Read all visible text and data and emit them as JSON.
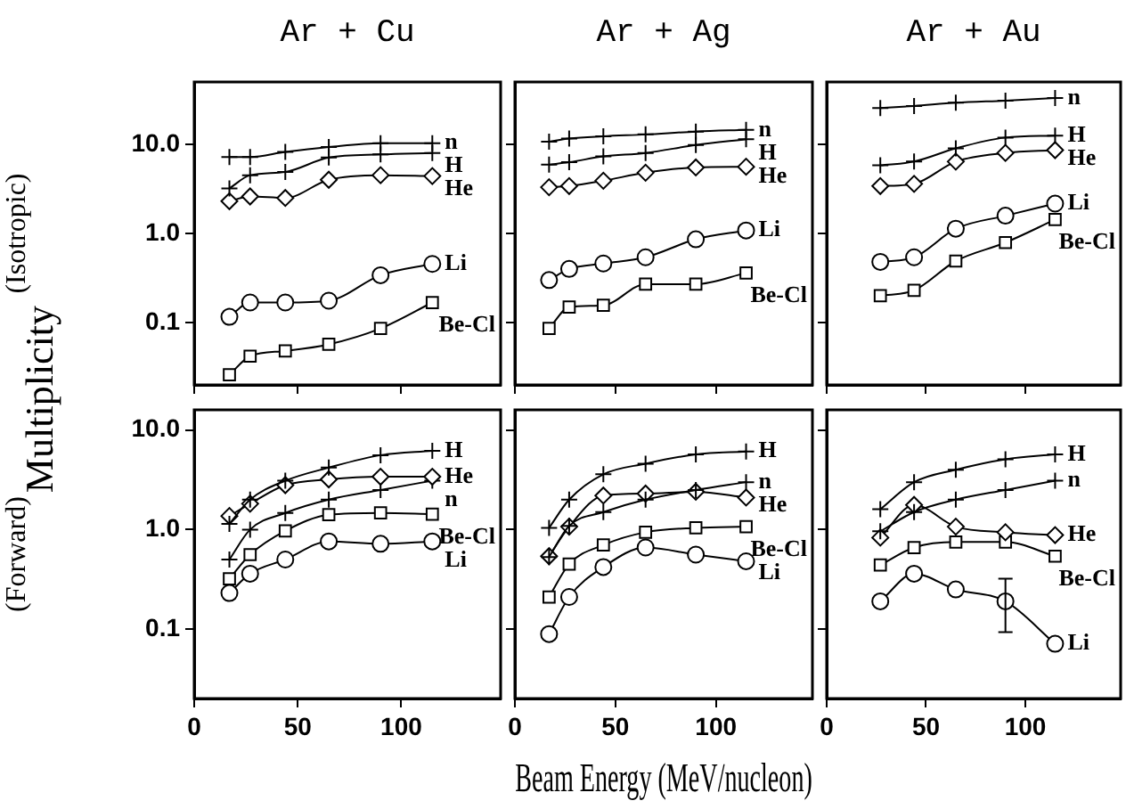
{
  "chart_data": [
    {
      "type": "line",
      "title": "Ar + Cu",
      "ylabel": "(Isotropic)",
      "annotations": [
        "Multiplicity"
      ],
      "log": true,
      "tick_labels": "y",
      "x": [
        17,
        27,
        44,
        65,
        90,
        115
      ],
      "xlim": [
        0,
        148
      ],
      "xticks": [
        0,
        50,
        100
      ],
      "ylim": [
        0.02,
        50
      ],
      "yticks": [
        {
          "value": 0.1,
          "label": "0.1"
        },
        {
          "value": 1,
          "label": "1.0"
        },
        {
          "value": 10,
          "label": "10.0"
        }
      ],
      "series": [
        {
          "name": "n",
          "color": "#000000",
          "marker": "cross",
          "values": [
            7.2,
            7.2,
            8.2,
            9.3,
            10.3,
            10.3
          ]
        },
        {
          "name": "H",
          "color": "#000000",
          "marker": "cross",
          "values": [
            3.2,
            4.5,
            4.9,
            7.1,
            7.7,
            8.0
          ]
        },
        {
          "name": "He",
          "color": "#000000",
          "marker": "diamond",
          "values": [
            2.3,
            2.6,
            2.5,
            4.0,
            4.5,
            4.4
          ]
        },
        {
          "name": "Li",
          "color": "#000000",
          "marker": "circle",
          "values": [
            0.116,
            0.168,
            0.168,
            0.176,
            0.34,
            0.455
          ]
        },
        {
          "name": "Be-Cl",
          "color": "#000000",
          "marker": "square",
          "values": [
            0.026,
            0.042,
            0.048,
            0.057,
            0.086,
            0.168
          ]
        }
      ]
    },
    {
      "type": "line",
      "title": "Ar + Ag",
      "log": true,
      "tick_labels": false,
      "x": [
        17,
        27,
        44,
        65,
        90,
        115
      ],
      "xlim": [
        0,
        148
      ],
      "xticks": [
        0,
        50,
        100
      ],
      "ylim": [
        0.02,
        50
      ],
      "yticks": [
        0.1,
        1,
        10
      ],
      "series": [
        {
          "name": "n",
          "color": "#000000",
          "marker": "cross",
          "values": [
            10.7,
            11.6,
            12.3,
            12.9,
            13.9,
            14.5
          ]
        },
        {
          "name": "H",
          "color": "#000000",
          "marker": "cross",
          "values": [
            5.9,
            6.3,
            7.3,
            8.0,
            9.8,
            11.4
          ]
        },
        {
          "name": "He",
          "color": "#000000",
          "marker": "diamond",
          "values": [
            3.3,
            3.4,
            3.9,
            4.8,
            5.5,
            5.6
          ]
        },
        {
          "name": "Li",
          "color": "#000000",
          "marker": "circle",
          "values": [
            0.3,
            0.4,
            0.46,
            0.54,
            0.86,
            1.08
          ]
        },
        {
          "name": "Be-Cl",
          "color": "#000000",
          "marker": "square",
          "values": [
            0.086,
            0.149,
            0.156,
            0.27,
            0.27,
            0.36
          ]
        }
      ]
    },
    {
      "type": "line",
      "title": "Ar + Au",
      "log": true,
      "tick_labels": false,
      "x": [
        27,
        44,
        65,
        90,
        115
      ],
      "xlim": [
        0,
        148
      ],
      "xticks": [
        0,
        50,
        100
      ],
      "ylim": [
        0.02,
        50
      ],
      "yticks": [
        0.1,
        1,
        10
      ],
      "series": [
        {
          "name": "n",
          "color": "#000000",
          "marker": "cross",
          "values": [
            25.5,
            26.9,
            29.2,
            30.9,
            33
          ]
        },
        {
          "name": "H",
          "color": "#000000",
          "marker": "cross",
          "values": [
            5.8,
            6.4,
            9.0,
            11.9,
            12.5
          ]
        },
        {
          "name": "He",
          "color": "#000000",
          "marker": "diamond",
          "values": [
            3.4,
            3.6,
            6.4,
            8.0,
            8.6
          ]
        },
        {
          "name": "Li",
          "color": "#000000",
          "marker": "circle",
          "values": [
            0.48,
            0.54,
            1.13,
            1.58,
            2.16
          ]
        },
        {
          "name": "Be-Cl",
          "color": "#000000",
          "marker": "square",
          "values": [
            0.2,
            0.23,
            0.49,
            0.79,
            1.43
          ]
        }
      ]
    },
    {
      "type": "line",
      "ylabel": "(Forward)",
      "log": true,
      "x": [
        17,
        27,
        44,
        65,
        90,
        115
      ],
      "xlim": [
        0,
        148
      ],
      "xticks": [
        0,
        50,
        100
      ],
      "ylim": [
        0.02,
        16
      ],
      "yticks": [
        {
          "value": 0.1,
          "label": "0.1"
        },
        {
          "value": 1,
          "label": "1.0"
        },
        {
          "value": 10,
          "label": "10.0"
        }
      ],
      "series": [
        {
          "name": "H",
          "color": "#000000",
          "marker": "cross",
          "values": [
            1.14,
            2.0,
            3.1,
            4.2,
            5.6,
            6.2
          ]
        },
        {
          "name": "He",
          "color": "#000000",
          "marker": "diamond",
          "values": [
            1.37,
            1.82,
            2.8,
            3.2,
            3.4,
            3.4
          ]
        },
        {
          "name": "n",
          "color": "#000000",
          "marker": "cross",
          "values": [
            0.5,
            1.0,
            1.47,
            2.0,
            2.5,
            3.1
          ]
        },
        {
          "name": "Be-Cl",
          "color": "#000000",
          "marker": "square",
          "values": [
            0.32,
            0.56,
            0.97,
            1.41,
            1.47,
            1.43
          ]
        },
        {
          "name": "Li",
          "color": "#000000",
          "marker": "circle",
          "values": [
            0.23,
            0.36,
            0.5,
            0.76,
            0.72,
            0.76
          ]
        }
      ]
    },
    {
      "type": "line",
      "xlabel": "Beam Energy (MeV/nucleon)",
      "log": true,
      "tick_labels": "x",
      "x": [
        17,
        27,
        44,
        65,
        90,
        115
      ],
      "xlim": [
        0,
        148
      ],
      "xticks": [
        0,
        50,
        100
      ],
      "ylim": [
        0.02,
        16
      ],
      "yticks": [
        0.1,
        1,
        10
      ],
      "series": [
        {
          "name": "H",
          "color": "#000000",
          "marker": "cross",
          "values": [
            1.04,
            2.0,
            3.6,
            4.6,
            5.7,
            6.1
          ]
        },
        {
          "name": "n",
          "color": "#000000",
          "marker": "cross",
          "values": [
            0.53,
            1.09,
            1.5,
            2.0,
            2.5,
            3.0
          ]
        },
        {
          "name": "He",
          "color": "#000000",
          "marker": "diamond",
          "values": [
            0.54,
            1.07,
            2.2,
            2.3,
            2.4,
            2.1
          ]
        },
        {
          "name": "Be-Cl",
          "color": "#000000",
          "marker": "square",
          "values": [
            0.21,
            0.45,
            0.7,
            0.94,
            1.04,
            1.07
          ]
        },
        {
          "name": "Li",
          "color": "#000000",
          "marker": "circle",
          "values": [
            0.089,
            0.21,
            0.42,
            0.66,
            0.56,
            0.48
          ]
        }
      ]
    },
    {
      "type": "line",
      "log": true,
      "tick_labels": "x",
      "x": [
        27,
        44,
        65,
        90,
        115
      ],
      "xlim": [
        0,
        148
      ],
      "xticks": [
        0,
        50,
        100
      ],
      "ylim": [
        0.02,
        16
      ],
      "yticks": [
        0.1,
        1,
        10
      ],
      "series": [
        {
          "name": "H",
          "color": "#000000",
          "marker": "cross",
          "values": [
            1.6,
            3.0,
            4.0,
            5.1,
            5.7
          ]
        },
        {
          "name": "n",
          "color": "#000000",
          "marker": "cross",
          "values": [
            0.96,
            1.5,
            2.0,
            2.5,
            3.1
          ]
        },
        {
          "name": "He",
          "color": "#000000",
          "marker": "diamond",
          "values": [
            0.83,
            1.77,
            1.07,
            0.94,
            0.88
          ]
        },
        {
          "name": "Be-Cl",
          "color": "#000000",
          "marker": "square",
          "values": [
            0.44,
            0.66,
            0.75,
            0.75,
            0.54
          ]
        },
        {
          "name": "Li",
          "color": "#000000",
          "marker": "circle",
          "values": [
            0.19,
            0.36,
            0.25,
            0.19,
            0.071
          ],
          "errors": [
            null,
            null,
            null,
            [
              0.093,
              0.32
            ],
            null
          ]
        }
      ]
    }
  ]
}
